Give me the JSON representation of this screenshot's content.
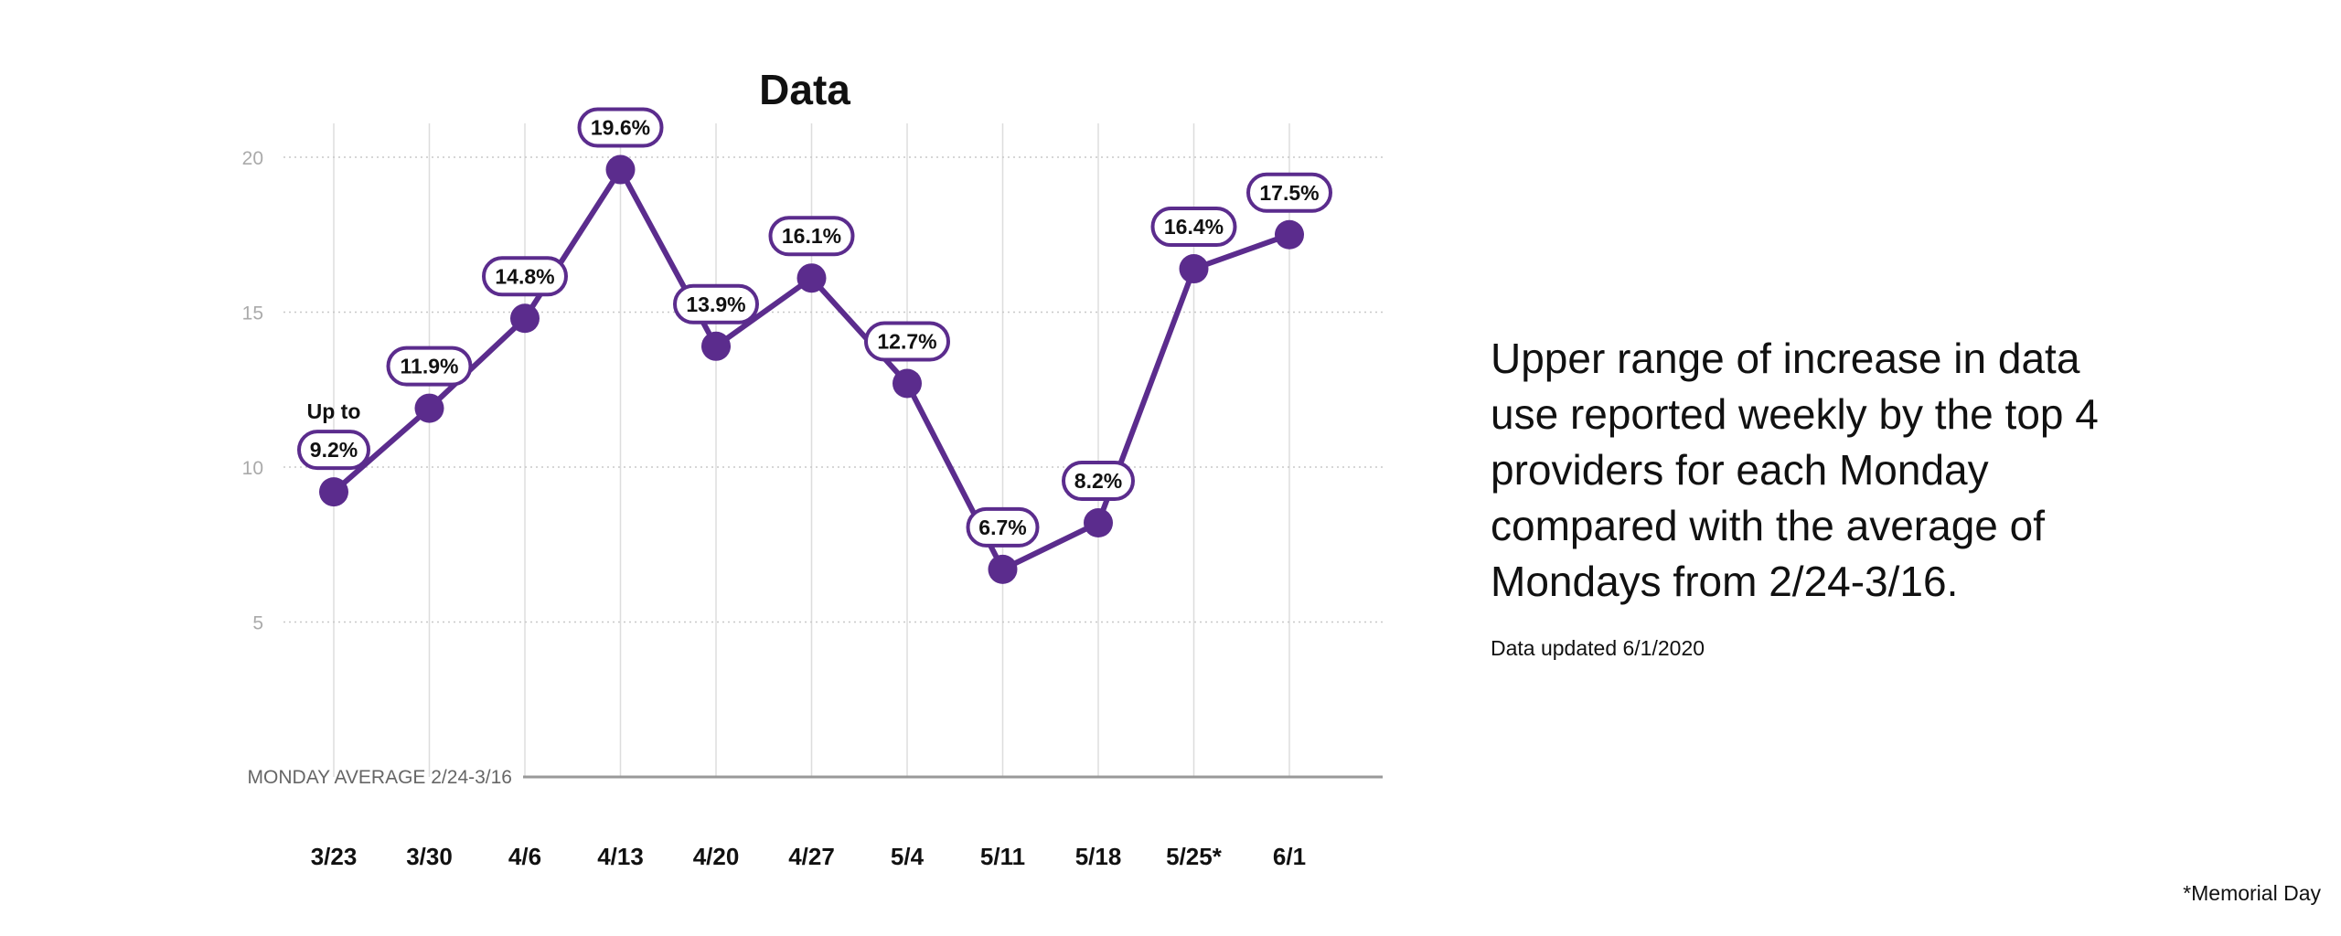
{
  "description": {
    "text": "Upper range of increase in data use reported weekly by the top 4 providers for each Monday compared with the average of Mondays from 2/24-3/16.",
    "updated": "Data updated 6/1/2020"
  },
  "footnote": "*Memorial Day",
  "chart_data": {
    "type": "line",
    "title": "Data",
    "xlabel": "",
    "ylabel": "",
    "categories": [
      "3/23",
      "3/30",
      "4/6",
      "4/13",
      "4/20",
      "4/27",
      "5/4",
      "5/11",
      "5/18",
      "5/25*",
      "6/1"
    ],
    "series": [
      {
        "values": [
          9.2,
          11.9,
          14.8,
          19.6,
          13.9,
          16.1,
          12.7,
          6.7,
          8.2,
          16.4,
          17.5
        ],
        "labels": [
          "9.2%",
          "11.9%",
          "14.8%",
          "19.6%",
          "13.9%",
          "16.1%",
          "12.7%",
          "6.7%",
          "8.2%",
          "16.4%",
          "17.5%"
        ],
        "color": "#5b2c8d"
      }
    ],
    "first_label_prefix": "Up to",
    "yticks": [
      5,
      10,
      15,
      20
    ],
    "ylim": [
      0,
      21
    ],
    "baseline_label": "MONDAY AVERAGE 2/24-3/16",
    "grid": true,
    "legend": "none",
    "colors": {
      "line": "#5b2c8d",
      "grid": "#dddddd",
      "tick_text": "#aaaaaa",
      "baseline": "#999999",
      "baseline_text": "#666666"
    }
  }
}
